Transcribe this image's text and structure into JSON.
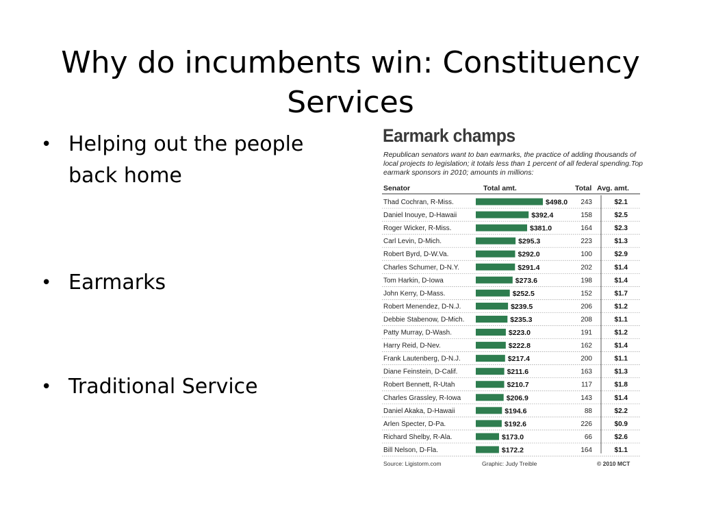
{
  "slide": {
    "title": "Why do incumbents win: Constituency Services",
    "bullets": [
      "Helping out the people back home",
      "Earmarks",
      "Traditional Service"
    ]
  },
  "graphic": {
    "title": "Earmark champs",
    "subtitle": "Republican senators want to ban earmarks, the practice of adding thousands of local projects to legislation; it totals less than 1 percent of all federal spending.Top earmark sponsors in 2010; amounts in millions:",
    "source": "Source: Ligistorm.com",
    "credit": "Graphic: Judy Treible",
    "copyright": "© 2010 MCT"
  },
  "chart_data": {
    "type": "bar",
    "orientation": "horizontal",
    "columns": [
      "Senator",
      "Total amt.",
      "Total",
      "Avg. amt."
    ],
    "bar_color": "#2e7d4f",
    "rows": [
      {
        "senator": "Thad Cochran, R-Miss.",
        "amount": 498.0,
        "amount_label": "$498.0",
        "total": 243,
        "avg": "$2.1"
      },
      {
        "senator": "Daniel Inouye, D-Hawaii",
        "amount": 392.4,
        "amount_label": "$392.4",
        "total": 158,
        "avg": "$2.5"
      },
      {
        "senator": "Roger Wicker, R-Miss.",
        "amount": 381.0,
        "amount_label": "$381.0",
        "total": 164,
        "avg": "$2.3"
      },
      {
        "senator": "Carl Levin, D-Mich.",
        "amount": 295.3,
        "amount_label": "$295.3",
        "total": 223,
        "avg": "$1.3"
      },
      {
        "senator": "Robert Byrd, D-W.Va.",
        "amount": 292.0,
        "amount_label": "$292.0",
        "total": 100,
        "avg": "$2.9"
      },
      {
        "senator": "Charles Schumer, D-N.Y.",
        "amount": 291.4,
        "amount_label": "$291.4",
        "total": 202,
        "avg": "$1.4"
      },
      {
        "senator": "Tom Harkin, D-Iowa",
        "amount": 273.6,
        "amount_label": "$273.6",
        "total": 198,
        "avg": "$1.4"
      },
      {
        "senator": "John Kerry, D-Mass.",
        "amount": 252.5,
        "amount_label": "$252.5",
        "total": 152,
        "avg": "$1.7"
      },
      {
        "senator": "Robert Menendez, D-N.J.",
        "amount": 239.5,
        "amount_label": "$239.5",
        "total": 206,
        "avg": "$1.2"
      },
      {
        "senator": "Debbie Stabenow, D-Mich.",
        "amount": 235.3,
        "amount_label": "$235.3",
        "total": 208,
        "avg": "$1.1"
      },
      {
        "senator": "Patty Murray, D-Wash.",
        "amount": 223.0,
        "amount_label": "$223.0",
        "total": 191,
        "avg": "$1.2"
      },
      {
        "senator": "Harry Reid, D-Nev.",
        "amount": 222.8,
        "amount_label": "$222.8",
        "total": 162,
        "avg": "$1.4"
      },
      {
        "senator": "Frank Lautenberg, D-N.J.",
        "amount": 217.4,
        "amount_label": "$217.4",
        "total": 200,
        "avg": "$1.1"
      },
      {
        "senator": "Diane Feinstein, D-Calif.",
        "amount": 211.6,
        "amount_label": "$211.6",
        "total": 163,
        "avg": "$1.3"
      },
      {
        "senator": "Robert Bennett, R-Utah",
        "amount": 210.7,
        "amount_label": "$210.7",
        "total": 117,
        "avg": "$1.8"
      },
      {
        "senator": "Charles Grassley, R-Iowa",
        "amount": 206.9,
        "amount_label": "$206.9",
        "total": 143,
        "avg": "$1.4"
      },
      {
        "senator": "Daniel Akaka, D-Hawaii",
        "amount": 194.6,
        "amount_label": "$194.6",
        "total": 88,
        "avg": "$2.2"
      },
      {
        "senator": "Arlen Specter, D-Pa.",
        "amount": 192.6,
        "amount_label": "$192.6",
        "total": 226,
        "avg": "$0.9"
      },
      {
        "senator": "Richard Shelby, R-Ala.",
        "amount": 173.0,
        "amount_label": "$173.0",
        "total": 66,
        "avg": "$2.6"
      },
      {
        "senator": "Bill Nelson, D-Fla.",
        "amount": 172.2,
        "amount_label": "$172.2",
        "total": 164,
        "avg": "$1.1"
      }
    ]
  }
}
